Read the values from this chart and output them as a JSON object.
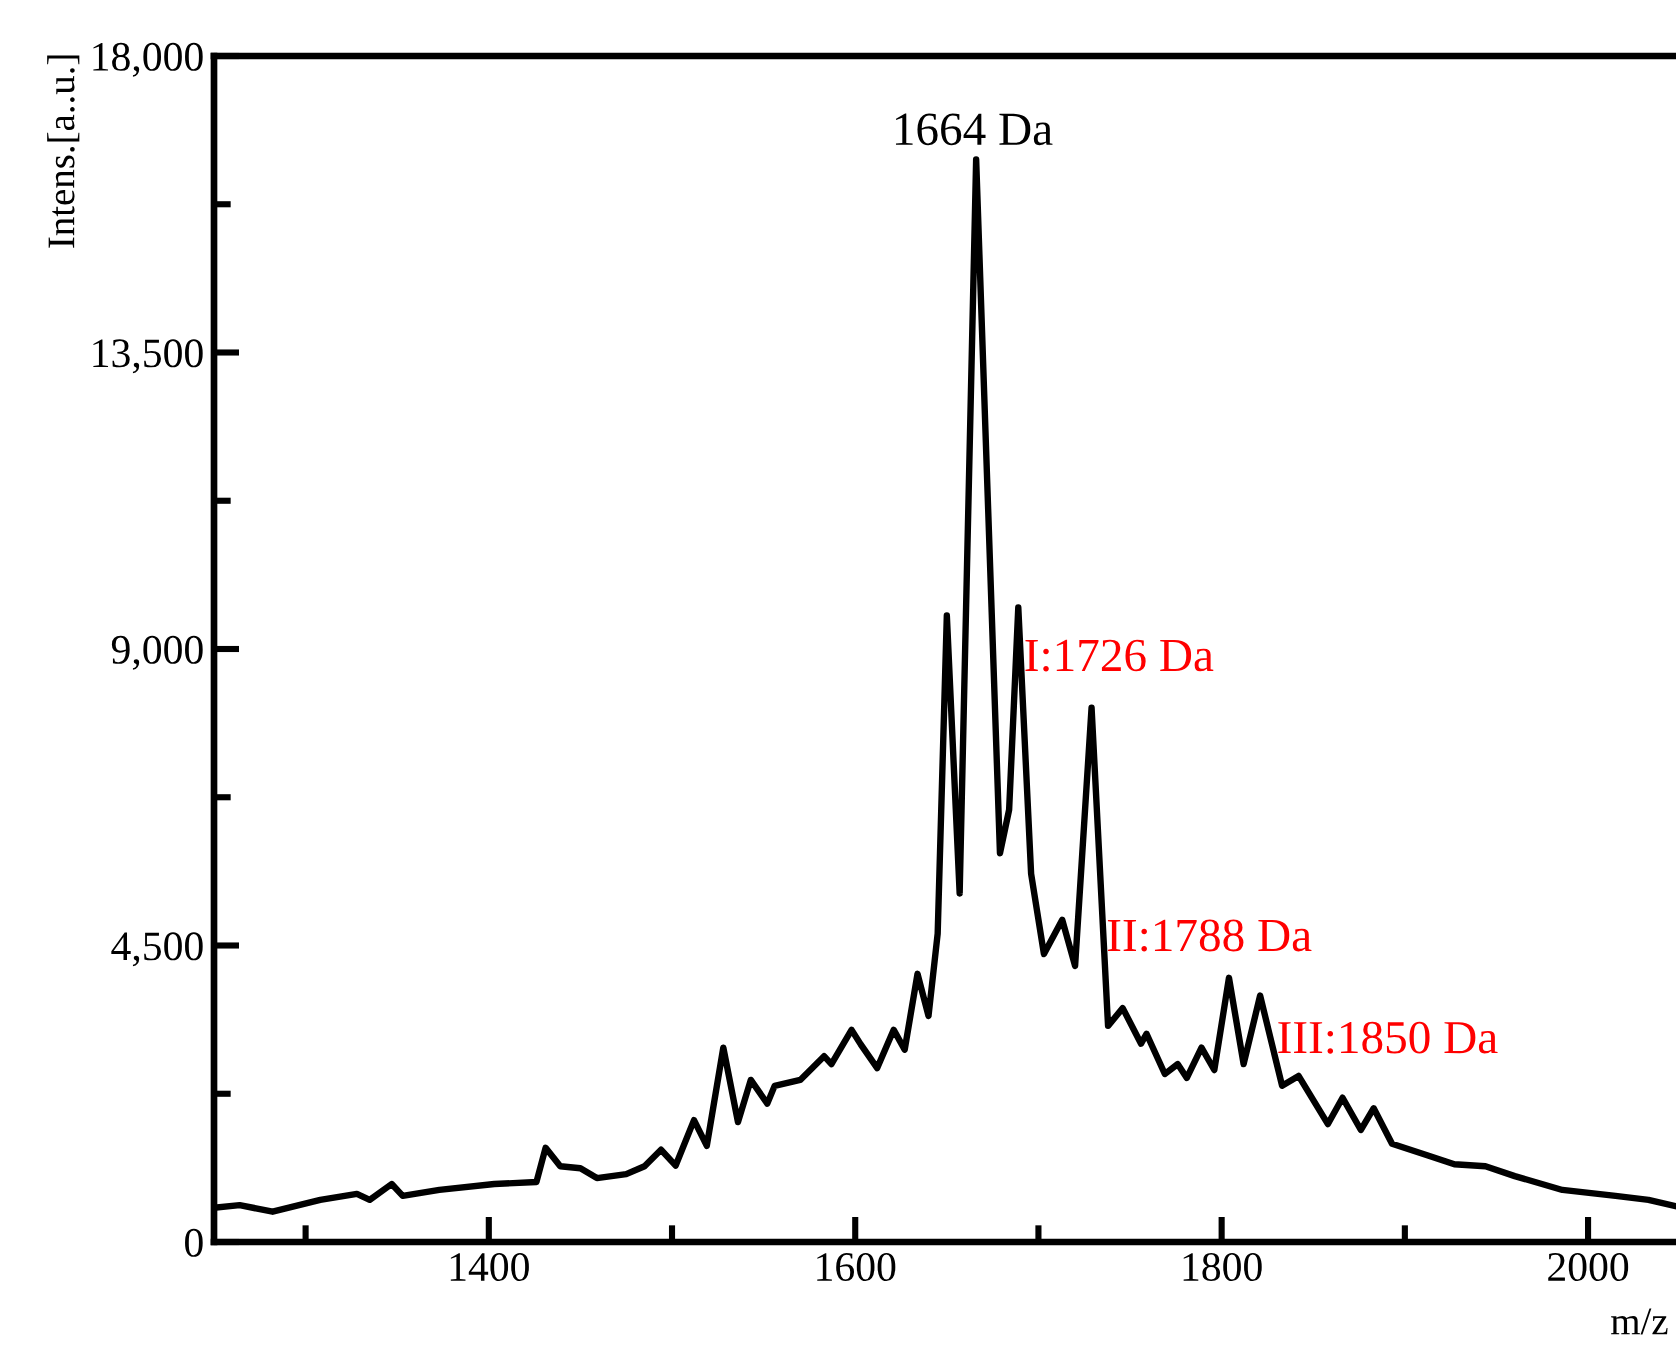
{
  "chart_data": {
    "type": "line",
    "xlabel": "m/z",
    "ylabel": "Intens.[a..u.]",
    "x": [
      1250,
      1264,
      1282,
      1308,
      1328,
      1335,
      1347,
      1353,
      1373,
      1403,
      1426,
      1431,
      1439,
      1450,
      1459,
      1475,
      1485,
      1494,
      1502,
      1512,
      1519,
      1528,
      1536,
      1543,
      1552,
      1556,
      1570,
      1583,
      1587,
      1598,
      1603,
      1612,
      1621,
      1627,
      1634,
      1640,
      1645,
      1650,
      1657,
      1666,
      1679,
      1684,
      1689,
      1696,
      1703,
      1713,
      1720,
      1729,
      1738,
      1746,
      1756,
      1759,
      1769,
      1776,
      1781,
      1789,
      1796,
      1804,
      1812,
      1821,
      1833,
      1842,
      1858,
      1866,
      1876,
      1883,
      1893,
      1913,
      1927,
      1944,
      1960,
      1986,
      2015,
      2033,
      2047
    ],
    "series": [
      {
        "color": "#000000",
        "values": [
          520,
          560,
          460,
          640,
          730,
          640,
          880,
          700,
          790,
          880,
          910,
          1430,
          1150,
          1120,
          970,
          1030,
          1150,
          1400,
          1160,
          1850,
          1460,
          2950,
          1820,
          2460,
          2100,
          2370,
          2460,
          2820,
          2700,
          3220,
          3000,
          2640,
          3220,
          2920,
          4070,
          3430,
          4680,
          9510,
          5290,
          16430,
          5900,
          6560,
          9630,
          5590,
          4370,
          4890,
          4190,
          8110,
          3280,
          3550,
          3010,
          3160,
          2550,
          2700,
          2490,
          2950,
          2610,
          4010,
          2700,
          3740,
          2370,
          2520,
          1790,
          2190,
          1700,
          2030,
          1490,
          1310,
          1180,
          1150,
          1000,
          790,
          700,
          640,
          550
        ]
      }
    ],
    "xlim": [
      1250,
      2048
    ],
    "xticks": [
      {
        "value": 1300,
        "label": null
      },
      1400,
      {
        "value": 1500,
        "label": null
      },
      1600,
      {
        "value": 1700,
        "label": null
      },
      1800,
      {
        "value": 1900,
        "label": null
      },
      2000
    ],
    "ylim": [
      0,
      18000
    ],
    "yticks": [
      {
        "value": 0,
        "label": "0"
      },
      {
        "value": 2250,
        "label": null
      },
      {
        "value": 4500,
        "label": "4,500"
      },
      {
        "value": 6750,
        "label": null
      },
      {
        "value": 9000,
        "label": "9,000"
      },
      {
        "value": 11250,
        "label": null
      },
      {
        "value": 13500,
        "label": "13,500"
      },
      {
        "value": 15750,
        "label": null
      },
      {
        "value": 18000,
        "label": "18,000"
      }
    ],
    "grid": false,
    "legend": false,
    "marker": "none",
    "line_style": "solid",
    "annotations": [
      {
        "text": "1664 Da",
        "x": 1664,
        "y": 16500
      },
      {
        "text": "I:1726 Da",
        "x": 1692,
        "y": 8840
      },
      {
        "text": "II:1788 Da",
        "x": 1737,
        "y": 4590
      },
      {
        "text": "III:1850 Da",
        "x": 1830,
        "y": 3040
      }
    ]
  }
}
